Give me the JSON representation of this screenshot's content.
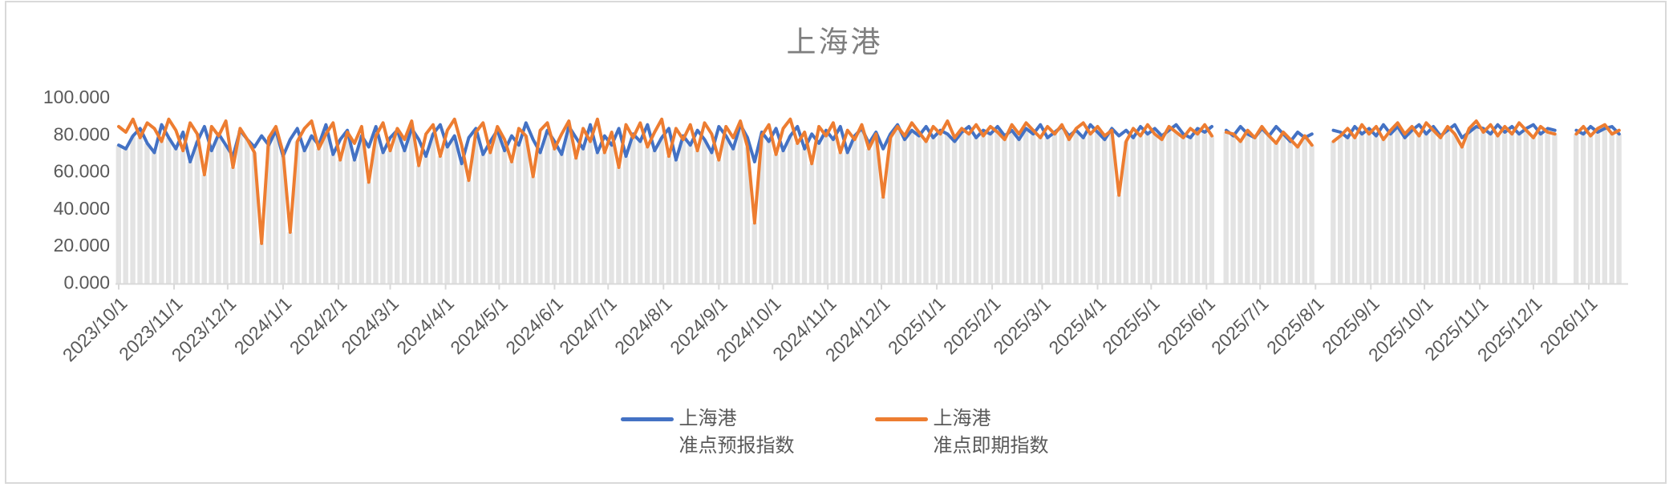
{
  "title": "上海港",
  "colors": {
    "forecast": "#4472C4",
    "spot": "#ED7D31",
    "bars": "#E3E3E3",
    "axis_text": "#595959",
    "title_text": "#7F7F7F",
    "axis_line": "#D9D9D9"
  },
  "legend": {
    "items": [
      {
        "label": "上海港\n准点预报指数",
        "series": "forecast"
      },
      {
        "label": "上海港\n准点即期指数",
        "series": "spot"
      }
    ]
  },
  "y_axis": {
    "ticks": [
      {
        "label": "100.000",
        "value": 100
      },
      {
        "label": "80.000",
        "value": 80
      },
      {
        "label": "60.000",
        "value": 60
      },
      {
        "label": "40.000",
        "value": 40
      },
      {
        "label": "20.000",
        "value": 20
      },
      {
        "label": "0.000",
        "value": 0
      }
    ]
  },
  "x_axis": {
    "tick_labels": [
      "2023/10/1",
      "2023/11/1",
      "2023/12/1",
      "2024/1/1",
      "2024/2/1",
      "2024/3/1",
      "2024/4/1",
      "2024/5/1",
      "2024/6/1",
      "2024/7/1",
      "2024/8/1",
      "2024/9/1",
      "2024/10/1",
      "2024/11/1",
      "2024/12/1",
      "2025/1/1",
      "2025/2/1",
      "2025/3/1",
      "2025/4/1",
      "2025/5/1",
      "2025/6/1",
      "2025/7/1",
      "2025/8/1",
      "2025/9/1",
      "2025/10/1",
      "2025/11/1",
      "2025/12/1",
      "2026/1/1"
    ],
    "tick_day_offsets": [
      0,
      31,
      61,
      92,
      123,
      152,
      183,
      213,
      244,
      274,
      305,
      336,
      366,
      397,
      427,
      458,
      489,
      517,
      548,
      578,
      609,
      639,
      670,
      701,
      731,
      762,
      792,
      823
    ]
  },
  "chart_data": {
    "type": "line",
    "title": "上海港",
    "start_date": "2023/10/1",
    "end_date": "2026/1/19",
    "step_days": 4,
    "ylim": [
      0,
      100
    ],
    "grid": false,
    "legend_position": "bottom",
    "background_bars": "light-gray daily columns rising to the lower of the two line values; absent where data gaps occur",
    "data_gaps": [
      "2025/6/8 - 2025/6/16",
      "2025/8/2 - 2025/8/14",
      "2025/12/15 - 2025/12/25"
    ],
    "notable_lows": [
      {
        "series": "准点即期指数",
        "date": "2023/12/20",
        "value": 21
      },
      {
        "series": "准点即期指数",
        "date": "2024/1/5",
        "value": 27
      },
      {
        "series": "准点即期指数",
        "date": "2024/9/20",
        "value": 32
      },
      {
        "series": "准点即期指数",
        "date": "2024/12/2",
        "value": 46
      },
      {
        "series": "准点即期指数",
        "date": "2025/4/14",
        "value": 47
      }
    ],
    "series": [
      {
        "name": "上海港 准点预报指数",
        "key": "forecast",
        "color": "#4472C4",
        "values": [
          74,
          72,
          79,
          83,
          75,
          70,
          85,
          78,
          72,
          81,
          65,
          76,
          84,
          71,
          80,
          74,
          68,
          82,
          77,
          73,
          79,
          74,
          82,
          68,
          77,
          83,
          71,
          79,
          74,
          85,
          69,
          77,
          82,
          66,
          79,
          73,
          84,
          70,
          78,
          82,
          71,
          83,
          77,
          68,
          80,
          85,
          73,
          79,
          64,
          78,
          83,
          69,
          76,
          82,
          71,
          79,
          74,
          86,
          77,
          70,
          82,
          76,
          69,
          84,
          78,
          72,
          85,
          70,
          79,
          74,
          83,
          68,
          80,
          76,
          85,
          71,
          78,
          83,
          66,
          79,
          74,
          82,
          77,
          70,
          84,
          79,
          72,
          85,
          78,
          65,
          81,
          76,
          83,
          71,
          79,
          84,
          72,
          80,
          75,
          82,
          77,
          84,
          70,
          79,
          83,
          75,
          81,
          72,
          80,
          85,
          77,
          82,
          79,
          84,
          78,
          82,
          80,
          76,
          81,
          84,
          78,
          82,
          80,
          84,
          79,
          82,
          77,
          83,
          80,
          85,
          78,
          81,
          84,
          79,
          82,
          78,
          85,
          81,
          77,
          83,
          79,
          82,
          78,
          84,
          80,
          83,
          79,
          82,
          85,
          80,
          78,
          83,
          81,
          84,
          null,
          82,
          79,
          84,
          80,
          78,
          83,
          79,
          84,
          80,
          76,
          81,
          78,
          80,
          null,
          null,
          82,
          81,
          78,
          84,
          80,
          83,
          79,
          85,
          80,
          84,
          78,
          82,
          85,
          80,
          84,
          79,
          82,
          85,
          78,
          81,
          84,
          83,
          80,
          85,
          81,
          84,
          80,
          83,
          85,
          80,
          83,
          82,
          null,
          null,
          82,
          80,
          84,
          81,
          83,
          84,
          80
        ]
      },
      {
        "name": "上海港 准点即期指数",
        "key": "spot",
        "color": "#ED7D31",
        "values": [
          84,
          81,
          88,
          78,
          86,
          83,
          76,
          88,
          82,
          71,
          86,
          80,
          58,
          84,
          79,
          87,
          62,
          83,
          77,
          70,
          21,
          78,
          84,
          70,
          27,
          76,
          83,
          87,
          72,
          80,
          86,
          66,
          81,
          75,
          84,
          54,
          79,
          86,
          71,
          83,
          77,
          87,
          63,
          80,
          85,
          68,
          82,
          88,
          74,
          55,
          81,
          86,
          70,
          84,
          77,
          65,
          83,
          79,
          57,
          82,
          86,
          72,
          80,
          87,
          67,
          83,
          76,
          88,
          70,
          81,
          62,
          85,
          78,
          86,
          73,
          81,
          88,
          68,
          83,
          77,
          85,
          71,
          86,
          80,
          66,
          84,
          78,
          87,
          73,
          32,
          79,
          85,
          69,
          83,
          88,
          75,
          81,
          64,
          84,
          79,
          86,
          70,
          82,
          77,
          85,
          72,
          80,
          46,
          78,
          84,
          79,
          86,
          81,
          76,
          84,
          80,
          87,
          78,
          83,
          80,
          85,
          79,
          84,
          81,
          77,
          85,
          80,
          86,
          82,
          78,
          84,
          80,
          85,
          77,
          83,
          86,
          80,
          84,
          79,
          82,
          47,
          76,
          83,
          79,
          85,
          80,
          77,
          84,
          81,
          78,
          83,
          80,
          85,
          79,
          null,
          81,
          80,
          76,
          82,
          78,
          84,
          79,
          75,
          81,
          77,
          73,
          79,
          74,
          null,
          null,
          76,
          79,
          83,
          78,
          85,
          80,
          84,
          77,
          82,
          86,
          80,
          84,
          79,
          86,
          82,
          78,
          84,
          80,
          73,
          83,
          87,
          81,
          85,
          79,
          84,
          80,
          86,
          82,
          78,
          84,
          81,
          80,
          null,
          null,
          80,
          84,
          79,
          83,
          85,
          80,
          82
        ]
      }
    ]
  }
}
